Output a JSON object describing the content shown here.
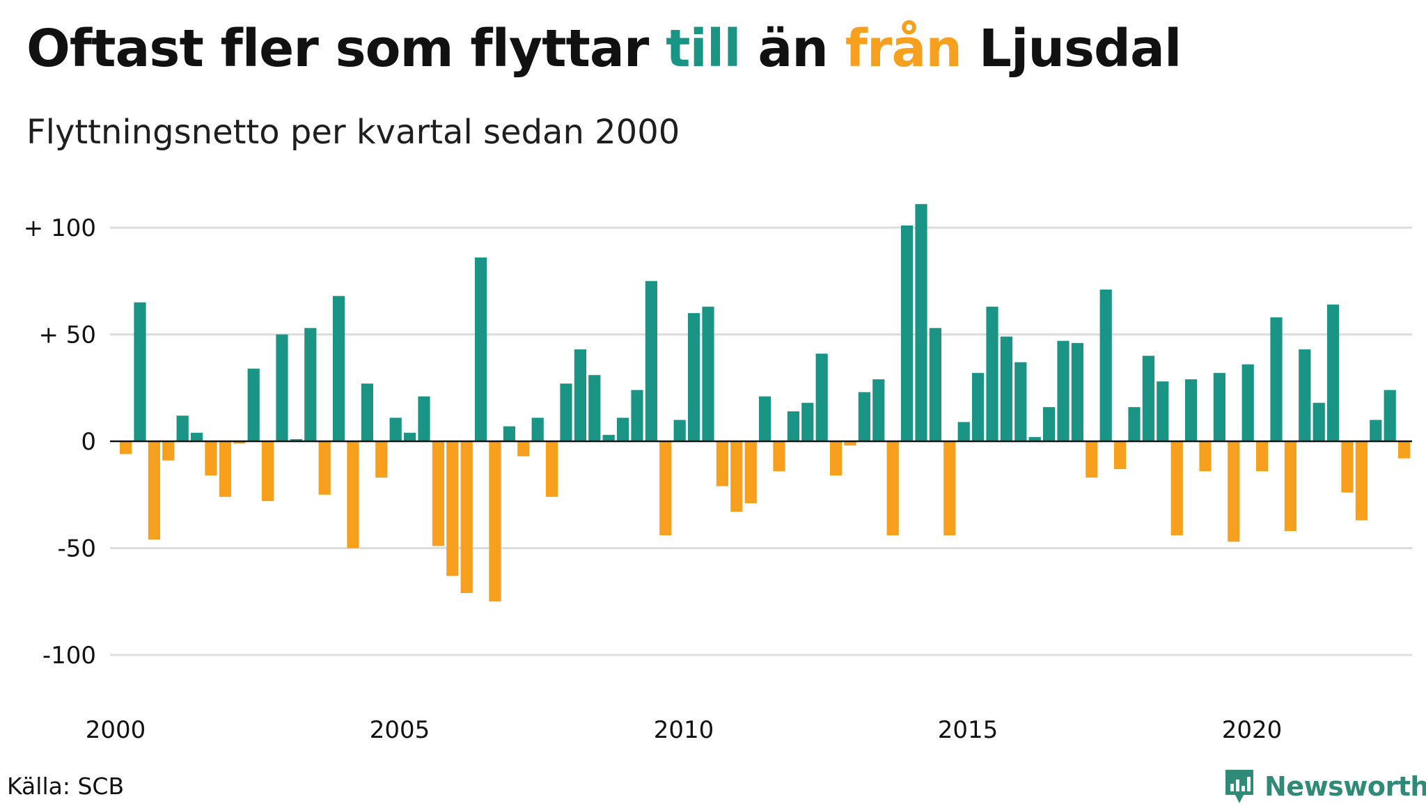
{
  "title": {
    "part1": "Oftast fler som flyttar ",
    "till": "till",
    "part2": " än ",
    "fran": "från",
    "part3": " Ljusdal"
  },
  "subtitle": "Flyttningsnetto per kvartal sedan 2000",
  "source": "Källa: SCB",
  "brand": "Newsworthy",
  "colors": {
    "positive": "#1a9585",
    "negative": "#f7a01d",
    "grid": "#dddddd",
    "zero": "#111111"
  },
  "chart_data": {
    "type": "bar",
    "title": "Oftast fler som flyttar till än från Ljusdal",
    "subtitle": "Flyttningsnetto per kvartal sedan 2000",
    "xlabel": "",
    "ylabel": "",
    "ylim": [
      -115,
      115
    ],
    "yticks": [
      {
        "value": 100,
        "label": "+ 100"
      },
      {
        "value": 50,
        "label": "+  50"
      },
      {
        "value": 0,
        "label": "0"
      },
      {
        "value": -50,
        "label": "-50"
      },
      {
        "value": -100,
        "label": "-100"
      }
    ],
    "xticks": [
      "2000",
      "2005",
      "2010",
      "2015",
      "2020"
    ],
    "grid": true,
    "start_year": 2000,
    "periods_per_year": 4,
    "values": [
      -6,
      65,
      -46,
      -9,
      12,
      4,
      -16,
      -26,
      -1,
      34,
      -28,
      50,
      1,
      53,
      -25,
      68,
      -50,
      27,
      -17,
      11,
      4,
      21,
      -49,
      -63,
      -71,
      86,
      -75,
      7,
      -7,
      11,
      -26,
      27,
      43,
      31,
      3,
      11,
      24,
      75,
      -44,
      10,
      60,
      63,
      -21,
      -33,
      -29,
      21,
      -14,
      14,
      18,
      41,
      -16,
      -2,
      23,
      29,
      -44,
      101,
      111,
      53,
      -44,
      9,
      32,
      63,
      49,
      37,
      2,
      16,
      47,
      46,
      -17,
      71,
      -13,
      16,
      40,
      28,
      -44,
      29,
      -14,
      32,
      -47,
      36,
      -14,
      58,
      -42,
      43,
      18,
      64,
      -24,
      -37,
      10,
      24,
      -8
    ]
  }
}
